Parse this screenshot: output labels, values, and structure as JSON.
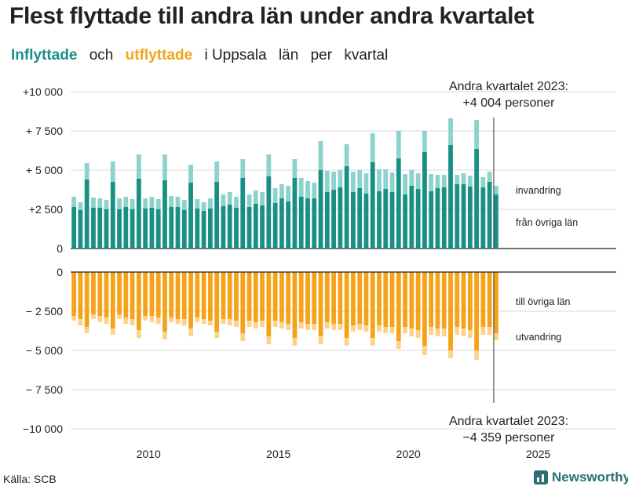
{
  "title": "Flest flyttade till andra län under andra kvartalet",
  "subtitle": {
    "part1": "Inflyttade",
    "part2": "och",
    "part3": "utflyttade",
    "part4": "i Uppsala",
    "part5": "län",
    "part6": "per",
    "part7": "kvartal"
  },
  "source": "Källa: SCB",
  "brand": "Newsworthy",
  "colors": {
    "in_dark": "#1a9085",
    "in_light": "#8cd3cc",
    "out_dark": "#f5a31a",
    "out_light": "#fcd38d",
    "grid": "#d9d9d9",
    "axis": "#222222"
  },
  "chart_data": {
    "type": "bar",
    "stacked": true,
    "x_start_year": 2007,
    "quarters_per_year": 4,
    "xlim": [
      2007,
      2028
    ],
    "x_ticks": [
      2010,
      2015,
      2020,
      2025
    ],
    "top_panel": {
      "ylim": [
        0,
        10000
      ],
      "y_ticks": [
        0,
        2500,
        5000,
        7500,
        10000
      ],
      "y_tick_labels": [
        "0",
        "+2 500",
        "+ 5 000",
        "+ 7 500",
        "+10 000"
      ],
      "series": [
        {
          "name": "från övriga län",
          "values": [
            2650,
            2450,
            4400,
            2600,
            2600,
            2500,
            4250,
            2500,
            2650,
            2500,
            4450,
            2550,
            2600,
            2500,
            4350,
            2650,
            2650,
            2450,
            4200,
            2550,
            2400,
            2550,
            4250,
            2700,
            2800,
            2600,
            4500,
            2650,
            2850,
            2750,
            4600,
            2900,
            3200,
            3000,
            4500,
            3300,
            3200,
            3200,
            5000,
            3600,
            3750,
            3900,
            5250,
            3600,
            3850,
            3500,
            5500,
            3650,
            3800,
            3600,
            5750,
            3450,
            4000,
            3800,
            6150,
            3650,
            3850,
            3900,
            6600,
            4100,
            4100,
            3950,
            6350,
            3900,
            4250,
            3450
          ]
        },
        {
          "name": "invandring",
          "values": [
            650,
            500,
            1050,
            650,
            600,
            600,
            1300,
            700,
            650,
            650,
            1550,
            650,
            700,
            650,
            1650,
            700,
            650,
            650,
            1150,
            600,
            550,
            650,
            1300,
            750,
            800,
            700,
            1200,
            800,
            850,
            850,
            1400,
            950,
            900,
            1000,
            1200,
            1200,
            1100,
            1000,
            1850,
            1350,
            1150,
            1100,
            1400,
            1300,
            1150,
            1300,
            1850,
            1400,
            1250,
            1250,
            1750,
            1300,
            1000,
            1000,
            1350,
            1100,
            850,
            800,
            1700,
            600,
            700,
            700,
            1850,
            650,
            650,
            550
          ]
        }
      ],
      "series_labels": [
        "invandring",
        "från övriga län"
      ],
      "annotation": [
        "Andra kvartalet 2023:",
        "+4 004 personer"
      ]
    },
    "bottom_panel": {
      "ylim": [
        -10000,
        0
      ],
      "y_ticks": [
        0,
        -2500,
        -5000,
        -7500,
        -10000
      ],
      "y_tick_labels": [
        "0",
        "− 2 500",
        "− 5 000",
        "− 7 500",
        "−10 000"
      ],
      "series": [
        {
          "name": "till övriga län",
          "values": [
            -2800,
            -3000,
            -3500,
            -2700,
            -2800,
            -2900,
            -3600,
            -2700,
            -2900,
            -3000,
            -3700,
            -2800,
            -2800,
            -2900,
            -3800,
            -2900,
            -3000,
            -3000,
            -3600,
            -2900,
            -3000,
            -3100,
            -3800,
            -3000,
            -3000,
            -3100,
            -3900,
            -3100,
            -3200,
            -3100,
            -4100,
            -3100,
            -3200,
            -3300,
            -4200,
            -3200,
            -3300,
            -3300,
            -4100,
            -3200,
            -3300,
            -3300,
            -4200,
            -3400,
            -3300,
            -3400,
            -4200,
            -3400,
            -3500,
            -3500,
            -4400,
            -3500,
            -3600,
            -3700,
            -4700,
            -3500,
            -3600,
            -3600,
            -5000,
            -3500,
            -3600,
            -3700,
            -5000,
            -3500,
            -3500,
            -3900
          ]
        },
        {
          "name": "utvandring",
          "values": [
            -300,
            -400,
            -400,
            -300,
            -400,
            -400,
            -400,
            -300,
            -400,
            -400,
            -500,
            -300,
            -400,
            -400,
            -500,
            -300,
            -300,
            -400,
            -500,
            -300,
            -300,
            -300,
            -400,
            -300,
            -400,
            -400,
            -500,
            -400,
            -400,
            -400,
            -500,
            -400,
            -400,
            -400,
            -500,
            -400,
            -400,
            -400,
            -500,
            -400,
            -400,
            -400,
            -500,
            -400,
            -400,
            -400,
            -500,
            -400,
            -400,
            -400,
            -500,
            -400,
            -500,
            -500,
            -600,
            -500,
            -500,
            -500,
            -500,
            -500,
            -500,
            -500,
            -600,
            -500,
            -500,
            -459
          ]
        }
      ],
      "series_labels": [
        "till övriga län",
        "utvandring"
      ],
      "annotation": [
        "Andra kvartalet 2023:",
        "−4 359 personer"
      ]
    }
  }
}
